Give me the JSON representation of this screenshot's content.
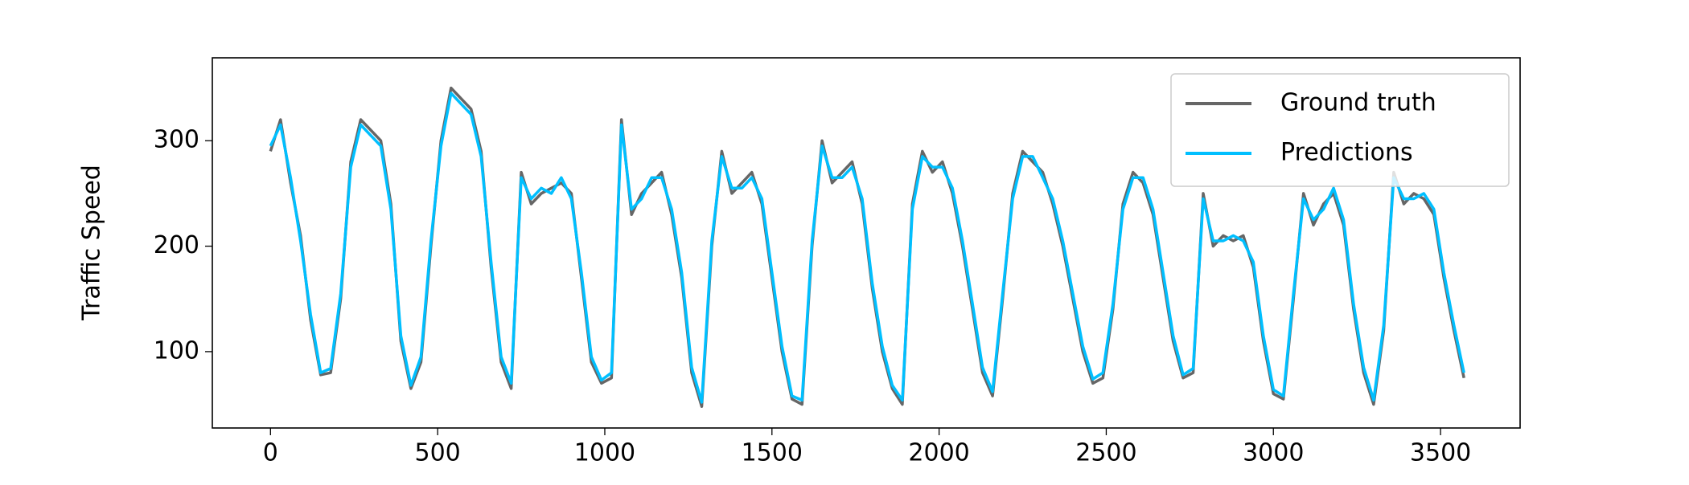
{
  "chart_data": {
    "type": "line",
    "ylabel": "Traffic Speed",
    "x": [
      0,
      30,
      60,
      90,
      120,
      150,
      180,
      210,
      240,
      270,
      300,
      330,
      360,
      390,
      420,
      450,
      480,
      510,
      540,
      570,
      600,
      630,
      660,
      690,
      720,
      750,
      780,
      810,
      840,
      870,
      900,
      930,
      960,
      990,
      1020,
      1050,
      1080,
      1110,
      1140,
      1170,
      1200,
      1230,
      1260,
      1290,
      1320,
      1350,
      1380,
      1410,
      1440,
      1470,
      1500,
      1530,
      1560,
      1590,
      1620,
      1650,
      1680,
      1710,
      1740,
      1770,
      1800,
      1830,
      1860,
      1890,
      1920,
      1950,
      1980,
      2010,
      2040,
      2070,
      2100,
      2130,
      2160,
      2190,
      2220,
      2250,
      2280,
      2310,
      2340,
      2370,
      2400,
      2430,
      2460,
      2490,
      2520,
      2550,
      2580,
      2610,
      2640,
      2670,
      2700,
      2730,
      2760,
      2790,
      2820,
      2850,
      2880,
      2910,
      2940,
      2970,
      3000,
      3030,
      3060,
      3090,
      3120,
      3150,
      3180,
      3210,
      3240,
      3270,
      3300,
      3330,
      3360,
      3390,
      3420,
      3450,
      3480,
      3510,
      3540,
      3570
    ],
    "series": [
      {
        "name": "Ground truth",
        "color": "#666666",
        "values": [
          290,
          320,
          260,
          210,
          130,
          78,
          80,
          150,
          280,
          320,
          310,
          300,
          240,
          110,
          65,
          90,
          200,
          300,
          350,
          340,
          330,
          290,
          180,
          90,
          65,
          270,
          240,
          250,
          255,
          260,
          250,
          170,
          90,
          70,
          75,
          320,
          230,
          250,
          260,
          270,
          230,
          170,
          80,
          48,
          200,
          290,
          250,
          260,
          270,
          240,
          170,
          100,
          55,
          50,
          200,
          300,
          260,
          270,
          280,
          240,
          160,
          100,
          65,
          50,
          240,
          290,
          270,
          280,
          250,
          200,
          140,
          80,
          58,
          150,
          250,
          290,
          280,
          270,
          240,
          200,
          150,
          100,
          70,
          75,
          140,
          240,
          270,
          260,
          230,
          170,
          110,
          75,
          80,
          250,
          200,
          210,
          205,
          210,
          180,
          110,
          60,
          55,
          150,
          250,
          220,
          240,
          250,
          220,
          140,
          80,
          50,
          120,
          270,
          240,
          250,
          245,
          230,
          170,
          120,
          75
        ]
      },
      {
        "name": "Predictions",
        "color": "#00bfff",
        "values": [
          295,
          315,
          265,
          205,
          135,
          80,
          84,
          155,
          275,
          315,
          305,
          295,
          235,
          115,
          68,
          95,
          205,
          295,
          345,
          335,
          325,
          285,
          185,
          95,
          70,
          265,
          245,
          255,
          250,
          265,
          245,
          175,
          95,
          73,
          80,
          315,
          235,
          245,
          265,
          265,
          235,
          175,
          85,
          52,
          205,
          285,
          255,
          255,
          265,
          245,
          175,
          105,
          58,
          54,
          205,
          295,
          265,
          265,
          275,
          245,
          165,
          105,
          68,
          54,
          235,
          285,
          275,
          275,
          255,
          205,
          145,
          85,
          62,
          155,
          245,
          285,
          285,
          265,
          245,
          205,
          155,
          105,
          74,
          80,
          145,
          235,
          265,
          265,
          235,
          175,
          115,
          78,
          84,
          245,
          205,
          205,
          210,
          205,
          185,
          115,
          64,
          58,
          155,
          245,
          225,
          235,
          255,
          225,
          145,
          85,
          54,
          125,
          265,
          245,
          245,
          250,
          235,
          175,
          125,
          80
        ]
      }
    ],
    "xlim": [
      -174,
      3738
    ],
    "ylim": [
      27.6,
      378.6
    ],
    "xticks": [
      0,
      500,
      1000,
      1500,
      2000,
      2500,
      3000,
      3500
    ],
    "yticks": [
      100,
      200,
      300
    ],
    "grid": false,
    "legend": "upper right"
  }
}
